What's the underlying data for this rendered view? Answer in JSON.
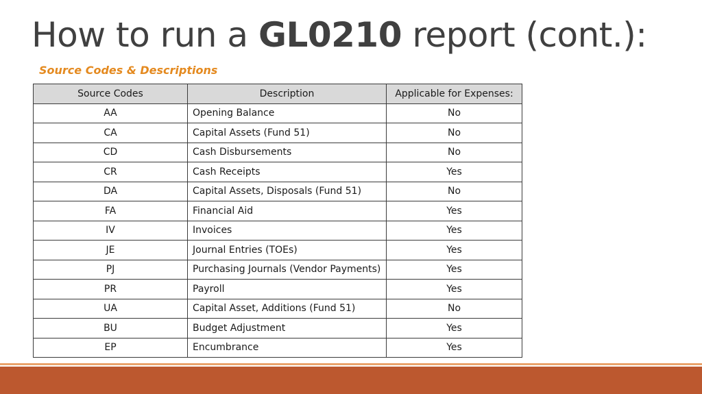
{
  "slide": {
    "title_prefix": "How to run a ",
    "title_bold": "GL0210",
    "title_suffix": " report (cont.):",
    "section_heading": "Source Codes & Descriptions"
  },
  "table": {
    "headers": [
      "Source Codes",
      "Description",
      "Applicable for Expenses:"
    ],
    "rows": [
      {
        "code": "AA",
        "description": "Opening Balance",
        "applicable": "No"
      },
      {
        "code": "CA",
        "description": "Capital Assets (Fund 51)",
        "applicable": "No"
      },
      {
        "code": "CD",
        "description": "Cash Disbursements",
        "applicable": "No"
      },
      {
        "code": "CR",
        "description": "Cash Receipts",
        "applicable": "Yes"
      },
      {
        "code": "DA",
        "description": "Capital Assets, Disposals (Fund 51)",
        "applicable": "No"
      },
      {
        "code": "FA",
        "description": "Financial Aid",
        "applicable": "Yes"
      },
      {
        "code": "IV",
        "description": "Invoices",
        "applicable": "Yes"
      },
      {
        "code": "JE",
        "description": "Journal Entries (TOEs)",
        "applicable": "Yes"
      },
      {
        "code": "PJ",
        "description": "Purchasing Journals (Vendor Payments)",
        "applicable": "Yes"
      },
      {
        "code": "PR",
        "description": "Payroll",
        "applicable": "Yes"
      },
      {
        "code": "UA",
        "description": "Capital Asset, Additions (Fund 51)",
        "applicable": "No"
      },
      {
        "code": "BU",
        "description": "Budget Adjustment",
        "applicable": "Yes"
      },
      {
        "code": "EP",
        "description": "Encumbrance",
        "applicable": "Yes"
      }
    ]
  },
  "colors": {
    "title": "#404040",
    "heading_accent": "#E48A20",
    "header_fill": "#D9D9D9",
    "footer_bar": "#BC582F",
    "footer_stripe": "#E9A36B"
  }
}
